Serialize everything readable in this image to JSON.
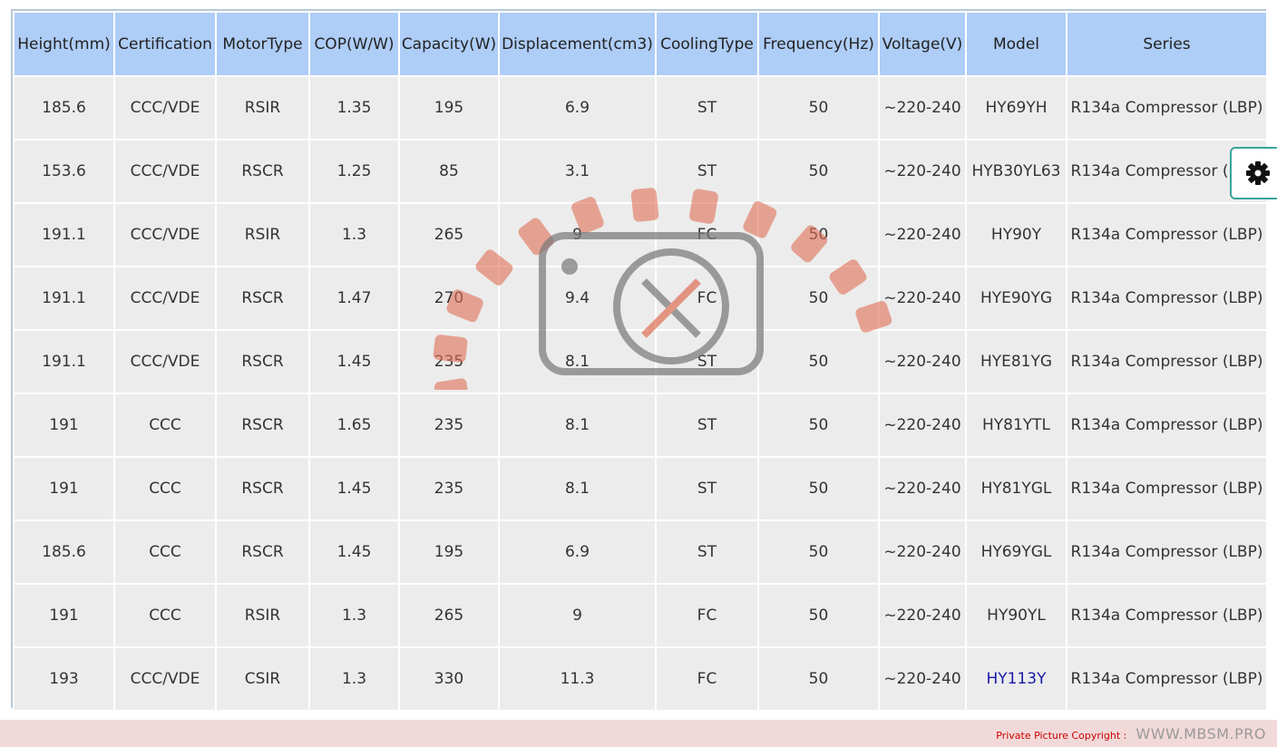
{
  "table": {
    "headers": [
      "Height(mm)",
      "Certification",
      "MotorType",
      "COP(W/W)",
      "Capacity(W)",
      "Displacement(cm3)",
      "CoolingType",
      "Frequency(Hz)",
      "Voltage(V)",
      "Model",
      "Series"
    ],
    "rows": [
      [
        "185.6",
        "CCC/VDE",
        "RSIR",
        "1.35",
        "195",
        "6.9",
        "ST",
        "50",
        "~220-240",
        "HY69YH",
        "R134a Compressor (LBP)"
      ],
      [
        "153.6",
        "CCC/VDE",
        "RSCR",
        "1.25",
        "85",
        "3.1",
        "ST",
        "50",
        "~220-240",
        "HYB30YL63",
        "R134a Compressor (LBP)"
      ],
      [
        "191.1",
        "CCC/VDE",
        "RSIR",
        "1.3",
        "265",
        "9",
        "FC",
        "50",
        "~220-240",
        "HY90Y",
        "R134a Compressor (LBP)"
      ],
      [
        "191.1",
        "CCC/VDE",
        "RSCR",
        "1.47",
        "270",
        "9.4",
        "FC",
        "50",
        "~220-240",
        "HYE90YG",
        "R134a Compressor (LBP)"
      ],
      [
        "191.1",
        "CCC/VDE",
        "RSCR",
        "1.45",
        "235",
        "8.1",
        "ST",
        "50",
        "~220-240",
        "HYE81YG",
        "R134a Compressor (LBP)"
      ],
      [
        "191",
        "CCC",
        "RSCR",
        "1.65",
        "235",
        "8.1",
        "ST",
        "50",
        "~220-240",
        "HY81YTL",
        "R134a Compressor (LBP)"
      ],
      [
        "191",
        "CCC",
        "RSCR",
        "1.45",
        "235",
        "8.1",
        "ST",
        "50",
        "~220-240",
        "HY81YGL",
        "R134a Compressor (LBP)"
      ],
      [
        "185.6",
        "CCC",
        "RSCR",
        "1.45",
        "195",
        "6.9",
        "ST",
        "50",
        "~220-240",
        "HY69YGL",
        "R134a Compressor (LBP)"
      ],
      [
        "191",
        "CCC",
        "RSIR",
        "1.3",
        "265",
        "9",
        "FC",
        "50",
        "~220-240",
        "HY90YL",
        "R134a Compressor (LBP)"
      ],
      [
        "193",
        "CCC/VDE",
        "CSIR",
        "1.3",
        "330",
        "11.3",
        "FC",
        "50",
        "~220-240",
        "HY113Y",
        "R134a Compressor (LBP)"
      ]
    ],
    "linked_model": "HY113Y"
  },
  "watermark": "WWW.MBSM.PRO",
  "footer": {
    "label": "Private Picture Copyright :",
    "url": "WWW.MBSM.PRO"
  },
  "settings_icon": "gear-icon",
  "colors": {
    "header_bg": "#aecdf7",
    "cell_bg": "#ececec",
    "link": "#1a1aa6",
    "footer_bg": "#f2d9d9"
  }
}
